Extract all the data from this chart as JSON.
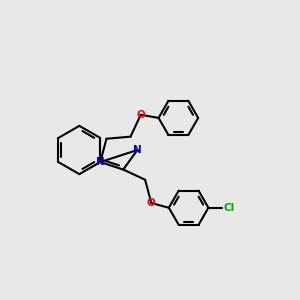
{
  "bg_color": "#e8e8e8",
  "bond_color": "#000000",
  "n_color": "#0000cc",
  "o_color": "#ff0000",
  "cl_color": "#00aa00",
  "lw": 1.5,
  "figsize": [
    3.0,
    3.0
  ],
  "dpi": 100,
  "xlim": [
    0,
    10
  ],
  "ylim": [
    0,
    10
  ]
}
